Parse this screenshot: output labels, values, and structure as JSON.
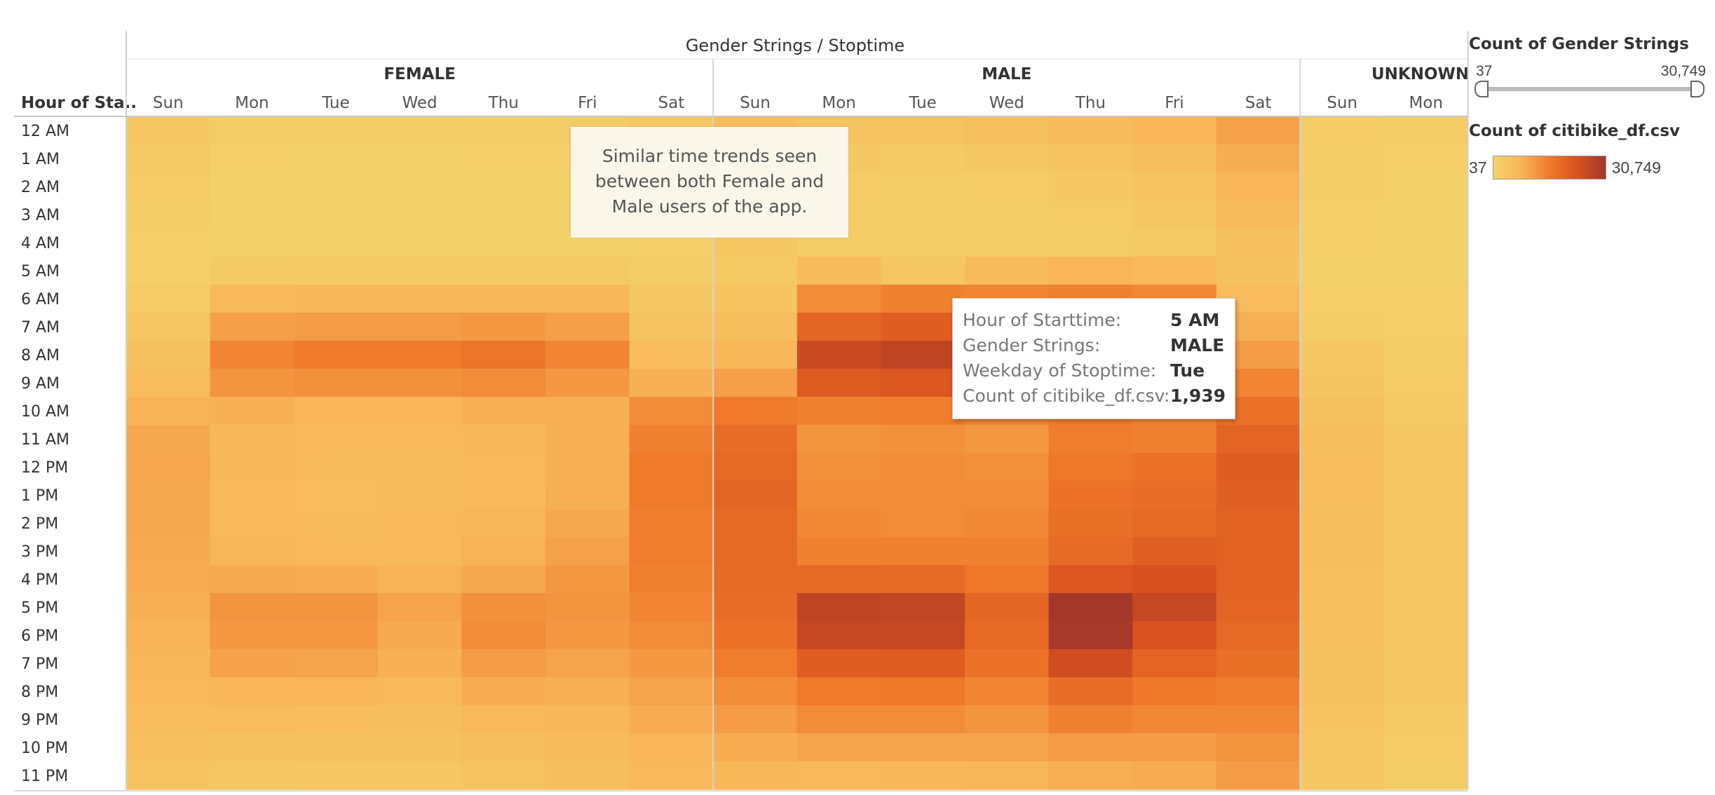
{
  "chart_data": {
    "type": "heatmap",
    "title": "Gender Strings / Stoptime",
    "row_header": "Hour of Sta..",
    "rows": [
      "12 AM",
      "1 AM",
      "2 AM",
      "3 AM",
      "4 AM",
      "5 AM",
      "6 AM",
      "7 AM",
      "8 AM",
      "9 AM",
      "10 AM",
      "11 AM",
      "12 PM",
      "1 PM",
      "2 PM",
      "3 PM",
      "4 PM",
      "5 PM",
      "6 PM",
      "7 PM",
      "8 PM",
      "9 PM",
      "10 PM",
      "11 PM"
    ],
    "groups": [
      {
        "name": "FEMALE",
        "days": [
          "Sun",
          "Mon",
          "Tue",
          "Wed",
          "Thu",
          "Fri",
          "Sat"
        ]
      },
      {
        "name": "MALE",
        "days": [
          "Sun",
          "Mon",
          "Tue",
          "Wed",
          "Thu",
          "Fri",
          "Sat"
        ]
      },
      {
        "name": "UNKNOWN",
        "days": [
          "Sun",
          "Mon"
        ]
      }
    ],
    "range": [
      37,
      30749
    ],
    "values": [
      [
        1500,
        900,
        700,
        700,
        800,
        900,
        1600,
        4000,
        2600,
        2600,
        3100,
        4200,
        5400,
        7800,
        1000,
        700
      ],
      [
        1200,
        500,
        400,
        400,
        500,
        600,
        1200,
        3500,
        1500,
        1400,
        1800,
        2400,
        3600,
        6400,
        800,
        500
      ],
      [
        1000,
        400,
        300,
        300,
        300,
        400,
        1000,
        3000,
        1000,
        900,
        1100,
        1500,
        2500,
        5400,
        700,
        400
      ],
      [
        800,
        300,
        200,
        200,
        200,
        300,
        800,
        2400,
        800,
        700,
        900,
        1100,
        1800,
        4400,
        600,
        300
      ],
      [
        600,
        300,
        200,
        200,
        200,
        300,
        600,
        1800,
        800,
        700,
        800,
        900,
        1400,
        3400,
        500,
        300
      ],
      [
        500,
        1200,
        1300,
        1300,
        1300,
        1300,
        700,
        1400,
        4300,
        1939,
        4300,
        5500,
        4600,
        2700,
        400,
        300
      ],
      [
        1000,
        4500,
        5000,
        5000,
        5000,
        5000,
        1500,
        2400,
        10500,
        12000,
        11500,
        12000,
        11000,
        4000,
        600,
        500
      ],
      [
        2000,
        8000,
        8500,
        8500,
        9000,
        8000,
        2500,
        3500,
        17000,
        19000,
        18000,
        18500,
        16500,
        6000,
        900,
        600
      ],
      [
        3000,
        11500,
        13000,
        13000,
        14000,
        11500,
        4000,
        5000,
        24000,
        26000,
        23000,
        24500,
        20500,
        8500,
        1500,
        800
      ],
      [
        4000,
        9500,
        10000,
        10000,
        10500,
        9000,
        6000,
        8000,
        19500,
        20500,
        18000,
        18500,
        16000,
        11500,
        2200,
        1100
      ],
      [
        5800,
        6000,
        5500,
        5500,
        6000,
        6000,
        10500,
        13000,
        12000,
        12500,
        11000,
        12500,
        11500,
        14500,
        3000,
        1400
      ],
      [
        7000,
        5000,
        4500,
        4500,
        5000,
        6000,
        12000,
        15500,
        9500,
        10000,
        9000,
        12500,
        12000,
        17500,
        3500,
        1700
      ],
      [
        7200,
        4700,
        4200,
        4200,
        4800,
        6000,
        13000,
        16500,
        10000,
        10500,
        10000,
        13500,
        14500,
        19000,
        3700,
        1800
      ],
      [
        7000,
        4500,
        4000,
        4200,
        4800,
        6200,
        13000,
        17000,
        10500,
        10500,
        10500,
        14500,
        15500,
        18500,
        3700,
        1800
      ],
      [
        7000,
        4800,
        4300,
        4500,
        5200,
        7000,
        12500,
        16500,
        11000,
        10500,
        11000,
        15000,
        16500,
        18000,
        3500,
        1800
      ],
      [
        6800,
        5200,
        4800,
        4800,
        5700,
        7800,
        12500,
        16500,
        12000,
        12000,
        12000,
        16000,
        18500,
        18000,
        3500,
        1800
      ],
      [
        6500,
        6800,
        6500,
        5800,
        7000,
        9000,
        12000,
        16000,
        16000,
        16500,
        13500,
        20500,
        22000,
        18000,
        3400,
        1800
      ],
      [
        6200,
        9500,
        9500,
        7500,
        10000,
        9500,
        11500,
        15500,
        26000,
        25500,
        17000,
        30749,
        25000,
        17500,
        3300,
        1800
      ],
      [
        5800,
        9000,
        9000,
        6800,
        10500,
        9000,
        10500,
        14500,
        25000,
        25000,
        16000,
        30000,
        21500,
        16500,
        3200,
        1700
      ],
      [
        5300,
        7700,
        7500,
        6000,
        8500,
        7500,
        9000,
        12500,
        19000,
        19500,
        14500,
        23000,
        17500,
        15000,
        3000,
        1600
      ],
      [
        4500,
        5500,
        5500,
        4500,
        6500,
        6000,
        7500,
        10500,
        13000,
        13500,
        11500,
        15500,
        13500,
        12500,
        2700,
        1500
      ],
      [
        3800,
        4000,
        3800,
        3600,
        4500,
        5000,
        6500,
        8500,
        10500,
        10500,
        9500,
        12000,
        11000,
        11000,
        2400,
        1300
      ],
      [
        3200,
        3000,
        3000,
        3000,
        3500,
        4200,
        5500,
        6500,
        7500,
        7500,
        7500,
        8500,
        8500,
        9500,
        2000,
        1100
      ],
      [
        2500,
        1800,
        2000,
        2000,
        2500,
        3500,
        4500,
        5000,
        4800,
        5000,
        5200,
        6200,
        6500,
        8500,
        1600,
        900
      ]
    ]
  },
  "legend": {
    "filter_title": "Count of Gender Strings",
    "filter_min": "37",
    "filter_max": "30,749",
    "color_title": "Count of citibike_df.csv",
    "color_min": "37",
    "color_max": "30,749",
    "color_scale": [
      "#f3d36b",
      "#f8b55a",
      "#ef7a2a",
      "#d9521f",
      "#a2372a"
    ]
  },
  "annotation": {
    "lines": [
      "Similar time trends seen",
      "between both Female and",
      "Male users of the app."
    ]
  },
  "tooltip": {
    "rows": [
      {
        "key": "Hour of Starttime:",
        "value": "5 AM"
      },
      {
        "key": "Gender Strings:",
        "value": "MALE"
      },
      {
        "key": "Weekday of Stoptime:",
        "value": "Tue"
      },
      {
        "key": "Count of citibike_df.csv:",
        "value": "1,939"
      }
    ]
  }
}
